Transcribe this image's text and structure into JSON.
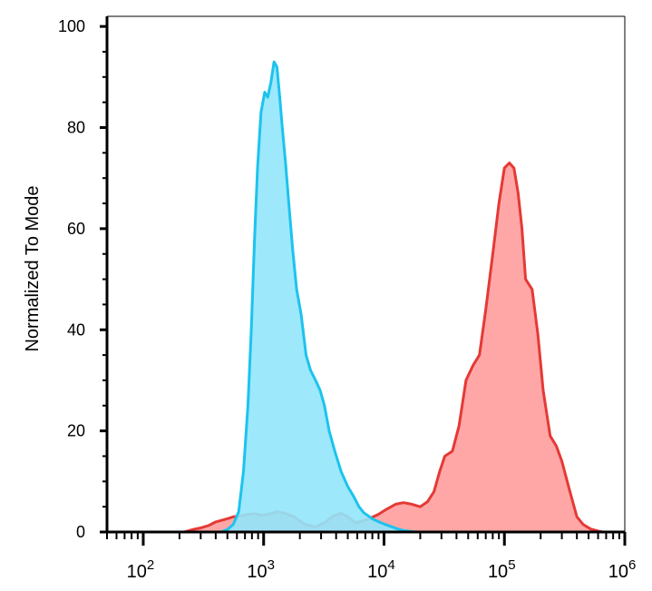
{
  "chart_data": {
    "type": "area",
    "xlabel": "",
    "ylabel": "Normalized To Mode",
    "x_scale": "log",
    "xlim": [
      50,
      1000000
    ],
    "ylim": [
      0,
      102
    ],
    "grid": false,
    "y_ticks": [
      {
        "value": 0,
        "label": "0"
      },
      {
        "value": 20,
        "label": "20"
      },
      {
        "value": 40,
        "label": "40"
      },
      {
        "value": 60,
        "label": "60"
      },
      {
        "value": 80,
        "label": "80"
      },
      {
        "value": 100,
        "label": "100"
      }
    ],
    "x_ticks": [
      {
        "value": 100,
        "base": "10",
        "exp": "2"
      },
      {
        "value": 1000,
        "base": "10",
        "exp": "3"
      },
      {
        "value": 10000,
        "base": "10",
        "exp": "4"
      },
      {
        "value": 100000,
        "base": "10",
        "exp": "5"
      },
      {
        "value": 1000000,
        "base": "10",
        "exp": "6"
      }
    ],
    "series": [
      {
        "fill": "#ffa7a7",
        "stroke": "#e53935",
        "x": [
          50,
          220,
          260,
          300,
          350,
          400,
          480,
          560,
          650,
          750,
          850,
          950,
          1100,
          1300,
          1500,
          1800,
          2200,
          2700,
          3200,
          3800,
          4400,
          5000,
          5800,
          6700,
          7800,
          9000,
          10500,
          12500,
          14500,
          17000,
          20000,
          23000,
          26000,
          29000,
          32000,
          37000,
          42000,
          48000,
          55000,
          62000,
          70000,
          80000,
          90000,
          100000,
          110000,
          120000,
          130000,
          140000,
          150000,
          170000,
          190000,
          210000,
          240000,
          270000,
          300000,
          350000,
          400000,
          450000,
          520000,
          600000,
          650000,
          1000000
        ],
        "y": [
          0,
          0,
          0.5,
          0.8,
          1.3,
          2.0,
          2.5,
          3.0,
          3.2,
          3.5,
          3.6,
          3.3,
          3.5,
          4.0,
          3.7,
          3.0,
          1.5,
          1.0,
          1.8,
          3.2,
          3.7,
          3.0,
          1.8,
          2.2,
          2.8,
          3.5,
          4.5,
          5.5,
          5.8,
          5.5,
          5.0,
          6.0,
          8.0,
          12.0,
          15.0,
          16.0,
          21.0,
          30.0,
          33.0,
          35.0,
          44.0,
          55.0,
          65.0,
          72.0,
          73.0,
          72.0,
          67.0,
          60.0,
          50.0,
          48.0,
          39.0,
          28.0,
          19.0,
          17.0,
          14.0,
          8.0,
          3.0,
          1.5,
          0.6,
          0.2,
          0,
          0
        ]
      },
      {
        "fill": "#92e6fb",
        "stroke": "#1cc3ee",
        "x": [
          50,
          440,
          500,
          560,
          620,
          680,
          740,
          790,
          840,
          890,
          950,
          1020,
          1080,
          1150,
          1220,
          1290,
          1360,
          1430,
          1520,
          1620,
          1740,
          1880,
          2050,
          2250,
          2450,
          2700,
          2950,
          3200,
          3500,
          3900,
          4400,
          5000,
          5600,
          6200,
          6800,
          7400,
          8000,
          8700,
          9500,
          10500,
          11700,
          13000,
          14500,
          16500,
          19000,
          22000,
          1000000
        ],
        "y": [
          0,
          0,
          0.5,
          1.5,
          4.0,
          12.0,
          25.0,
          40.0,
          58.0,
          72.0,
          83.0,
          87.0,
          86.0,
          89.0,
          93.0,
          92.0,
          86.0,
          80.0,
          73.0,
          65.0,
          56.0,
          48.0,
          43.0,
          35.0,
          32.0,
          30.0,
          28.0,
          25.0,
          20.0,
          16.0,
          12.0,
          9.0,
          7.0,
          5.0,
          3.8,
          3.2,
          2.6,
          2.2,
          1.8,
          1.4,
          1.0,
          0.6,
          0.3,
          0.1,
          0,
          0,
          0
        ]
      }
    ]
  }
}
